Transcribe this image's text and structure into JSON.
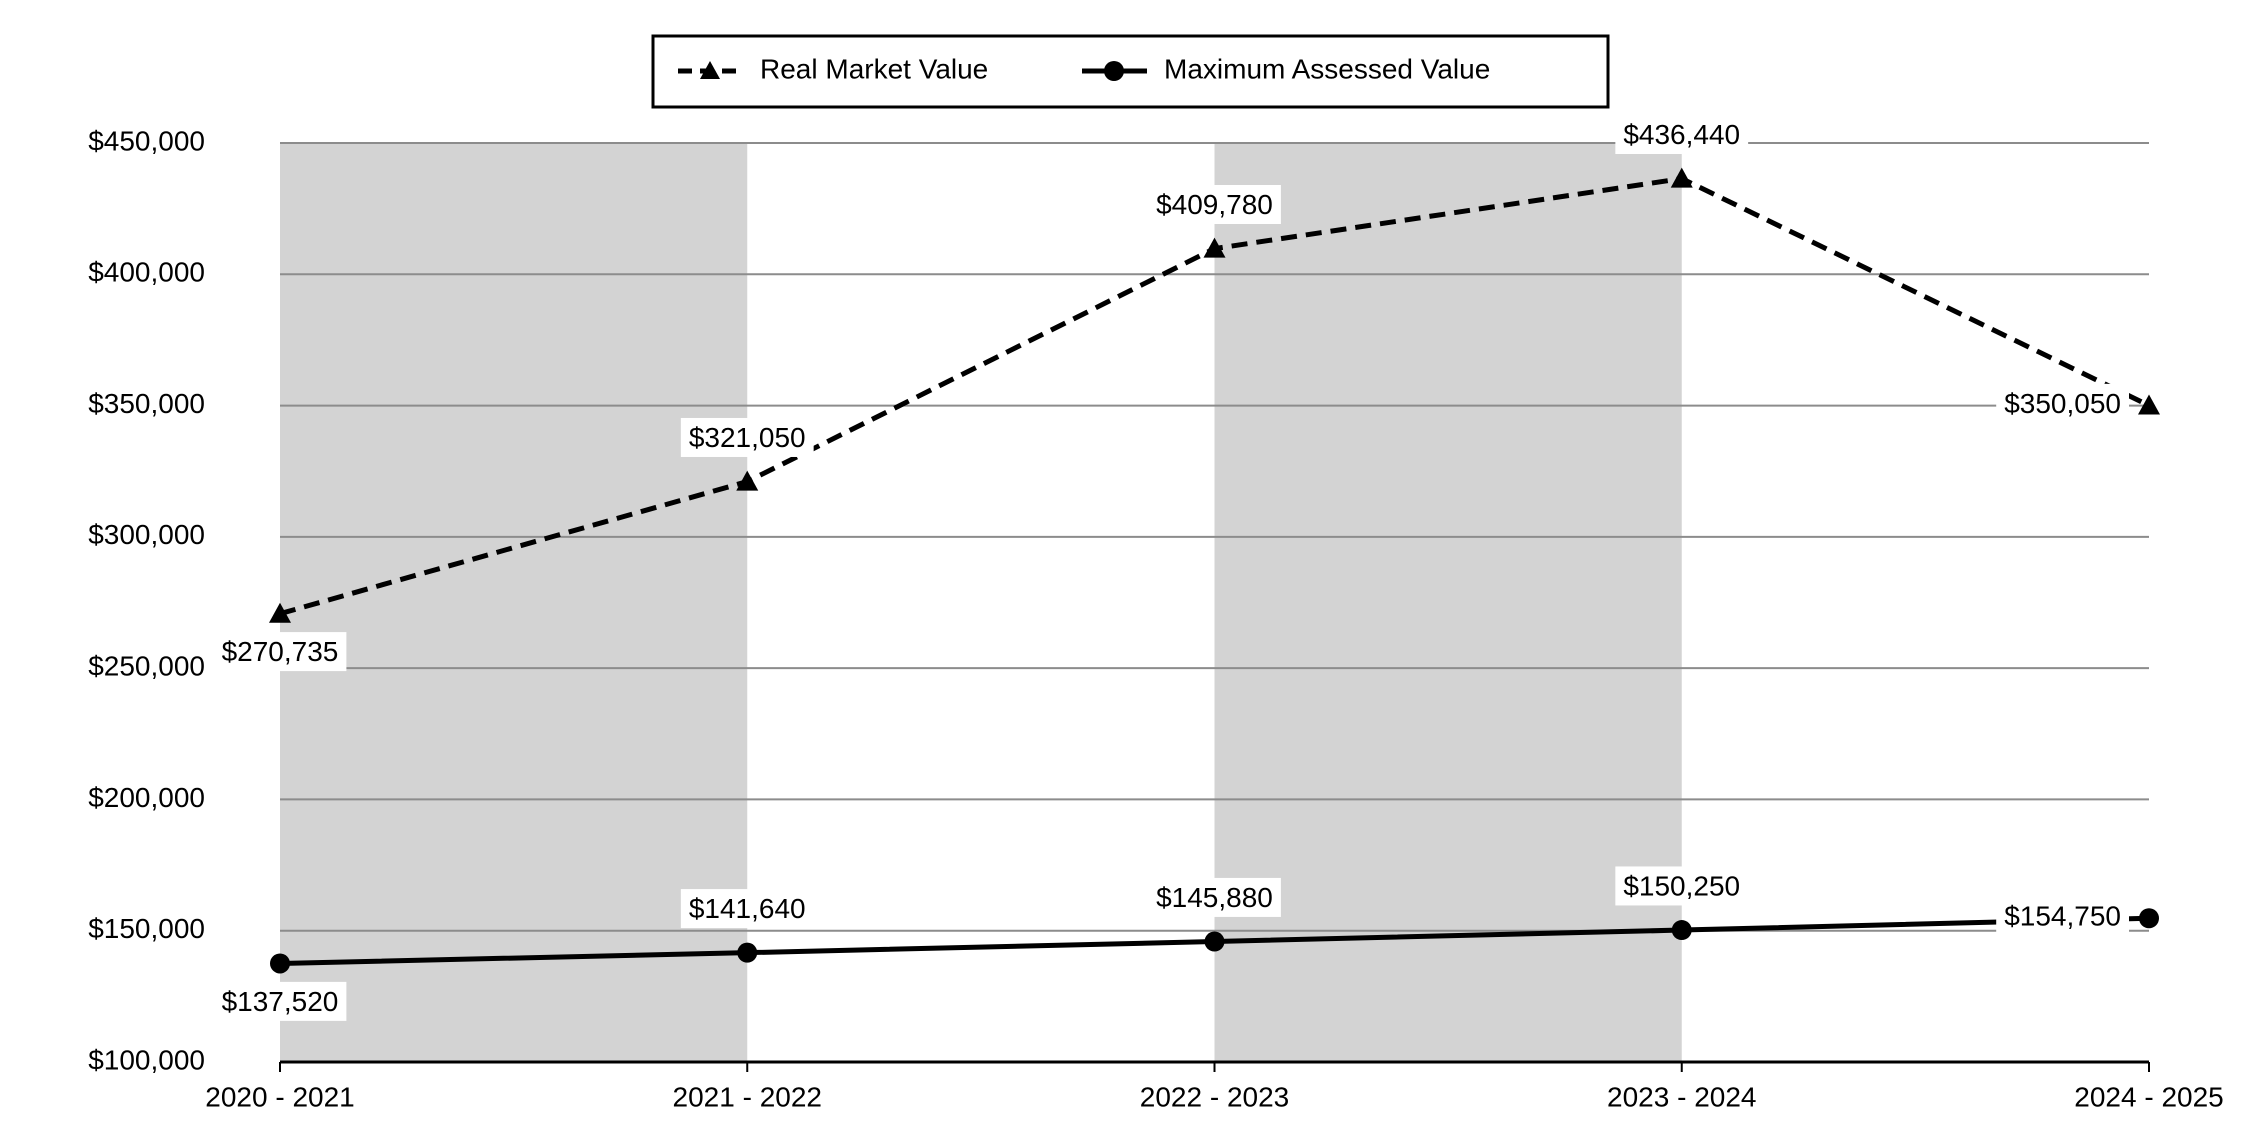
{
  "chart_data": {
    "type": "line",
    "categories": [
      "2020 - 2021",
      "2021 - 2022",
      "2022 - 2023",
      "2023 - 2024",
      "2024 - 2025"
    ],
    "series": [
      {
        "name": "Real Market Value",
        "color": "#000000",
        "dash": true,
        "marker": "triangle",
        "values": [
          270735,
          321050,
          409780,
          436440,
          350050
        ],
        "value_labels": [
          "$270,735",
          "$321,050",
          "$409,780",
          "$436,440",
          "$350,050"
        ]
      },
      {
        "name": "Maximum Assessed Value",
        "color": "#000000",
        "dash": false,
        "marker": "circle",
        "values": [
          137520,
          141640,
          145880,
          150250,
          154750
        ],
        "value_labels": [
          "$137,520",
          "$141,640",
          "$145,880",
          "$150,250",
          "$154,750"
        ]
      }
    ],
    "ylim": [
      100000,
      450000
    ],
    "yticks": [
      {
        "value": 100000,
        "label": "$100,000"
      },
      {
        "value": 150000,
        "label": "$150,000"
      },
      {
        "value": 200000,
        "label": "$200,000"
      },
      {
        "value": 250000,
        "label": "$250,000"
      },
      {
        "value": 300000,
        "label": "$300,000"
      },
      {
        "value": 350000,
        "label": "$350,000"
      },
      {
        "value": 400000,
        "label": "$400,000"
      },
      {
        "value": 450000,
        "label": "$450,000"
      }
    ],
    "grid": true,
    "legend": "top"
  }
}
